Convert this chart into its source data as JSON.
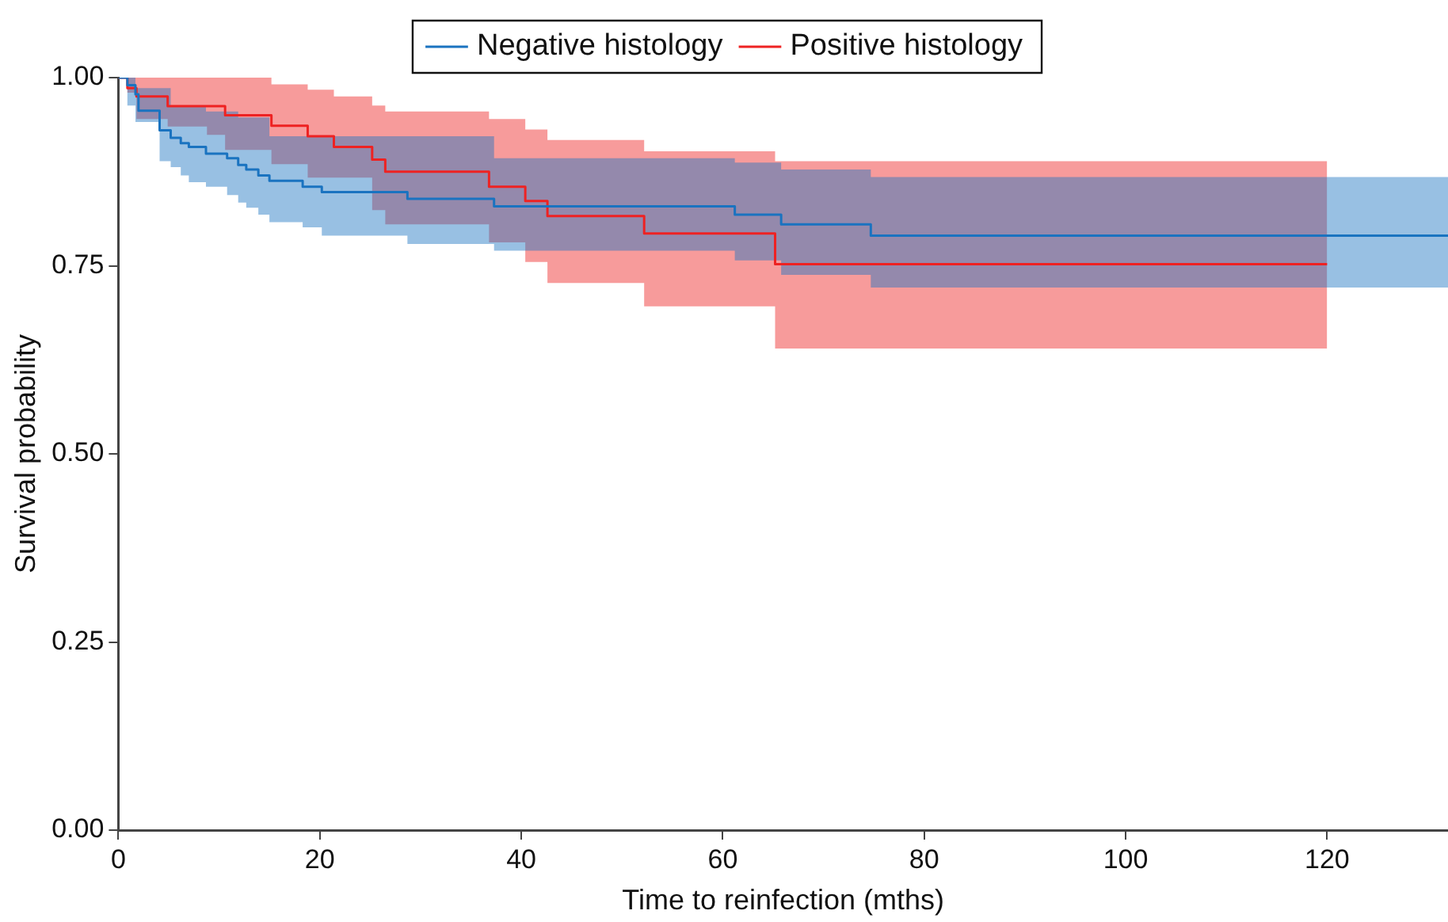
{
  "chart_data": {
    "type": "step",
    "xlabel": "Time to reinfection (mths)",
    "ylabel": "Survival probability",
    "xlim": [
      0,
      132
    ],
    "xticks": [
      0,
      20,
      40,
      60,
      80,
      100,
      120
    ],
    "ylim": [
      0,
      1
    ],
    "yticks": [
      {
        "value": 0,
        "label": "0.00"
      },
      {
        "value": 0.25,
        "label": "0.25"
      },
      {
        "value": 0.5,
        "label": "0.50"
      },
      {
        "value": 0.75,
        "label": "0.75"
      },
      {
        "value": 1,
        "label": "1.00"
      }
    ],
    "grid": false,
    "legend": "top",
    "line_style": "solid",
    "marker": "none",
    "series": [
      {
        "name": "Negative histology",
        "color": "#1a73c0",
        "x": [
          0,
          0.9,
          1.7,
          2.0,
          4.1,
          5.2,
          6.2,
          7.0,
          8.7,
          10.8,
          11.9,
          12.7,
          13.9,
          15.0,
          18.3,
          20.2,
          28.7,
          37.3,
          61.2,
          65.8,
          74.7,
          132
        ],
        "values": [
          1.0,
          0.99,
          0.978,
          0.956,
          0.93,
          0.92,
          0.913,
          0.908,
          0.899,
          0.893,
          0.884,
          0.878,
          0.87,
          0.863,
          0.855,
          0.848,
          0.839,
          0.829,
          0.818,
          0.805,
          0.79,
          0.79
        ],
        "lower": [
          1.0,
          0.963,
          0.941,
          0.941,
          0.889,
          0.881,
          0.87,
          0.861,
          0.855,
          0.844,
          0.834,
          0.827,
          0.818,
          0.808,
          0.801,
          0.79,
          0.779,
          0.77,
          0.757,
          0.738,
          0.721,
          0.721
        ],
        "upper": [
          1.0,
          1.0,
          0.986,
          0.986,
          0.986,
          0.963,
          0.963,
          0.963,
          0.955,
          0.955,
          0.947,
          0.947,
          0.947,
          0.922,
          0.922,
          0.922,
          0.922,
          0.893,
          0.887,
          0.878,
          0.868,
          0.868
        ]
      },
      {
        "name": "Positive histology",
        "color": "#ee2222",
        "x": [
          0,
          0.9,
          1.8,
          4.9,
          8.8,
          10.6,
          15.2,
          18.8,
          21.4,
          25.2,
          26.5,
          36.8,
          40.4,
          42.6,
          52.2,
          65.2,
          120
        ],
        "values": [
          1.0,
          0.986,
          0.975,
          0.962,
          0.962,
          0.95,
          0.936,
          0.922,
          0.908,
          0.891,
          0.875,
          0.855,
          0.836,
          0.816,
          0.793,
          0.752,
          0.752
        ],
        "lower": [
          1.0,
          0.98,
          0.945,
          0.935,
          0.924,
          0.904,
          0.885,
          0.867,
          0.867,
          0.824,
          0.805,
          0.781,
          0.755,
          0.727,
          0.696,
          0.64,
          0.64
        ],
        "upper": [
          1.0,
          1.0,
          1.0,
          1.0,
          1.0,
          1.0,
          0.991,
          0.984,
          0.975,
          0.963,
          0.955,
          0.945,
          0.931,
          0.917,
          0.902,
          0.889,
          0.889
        ]
      }
    ]
  }
}
